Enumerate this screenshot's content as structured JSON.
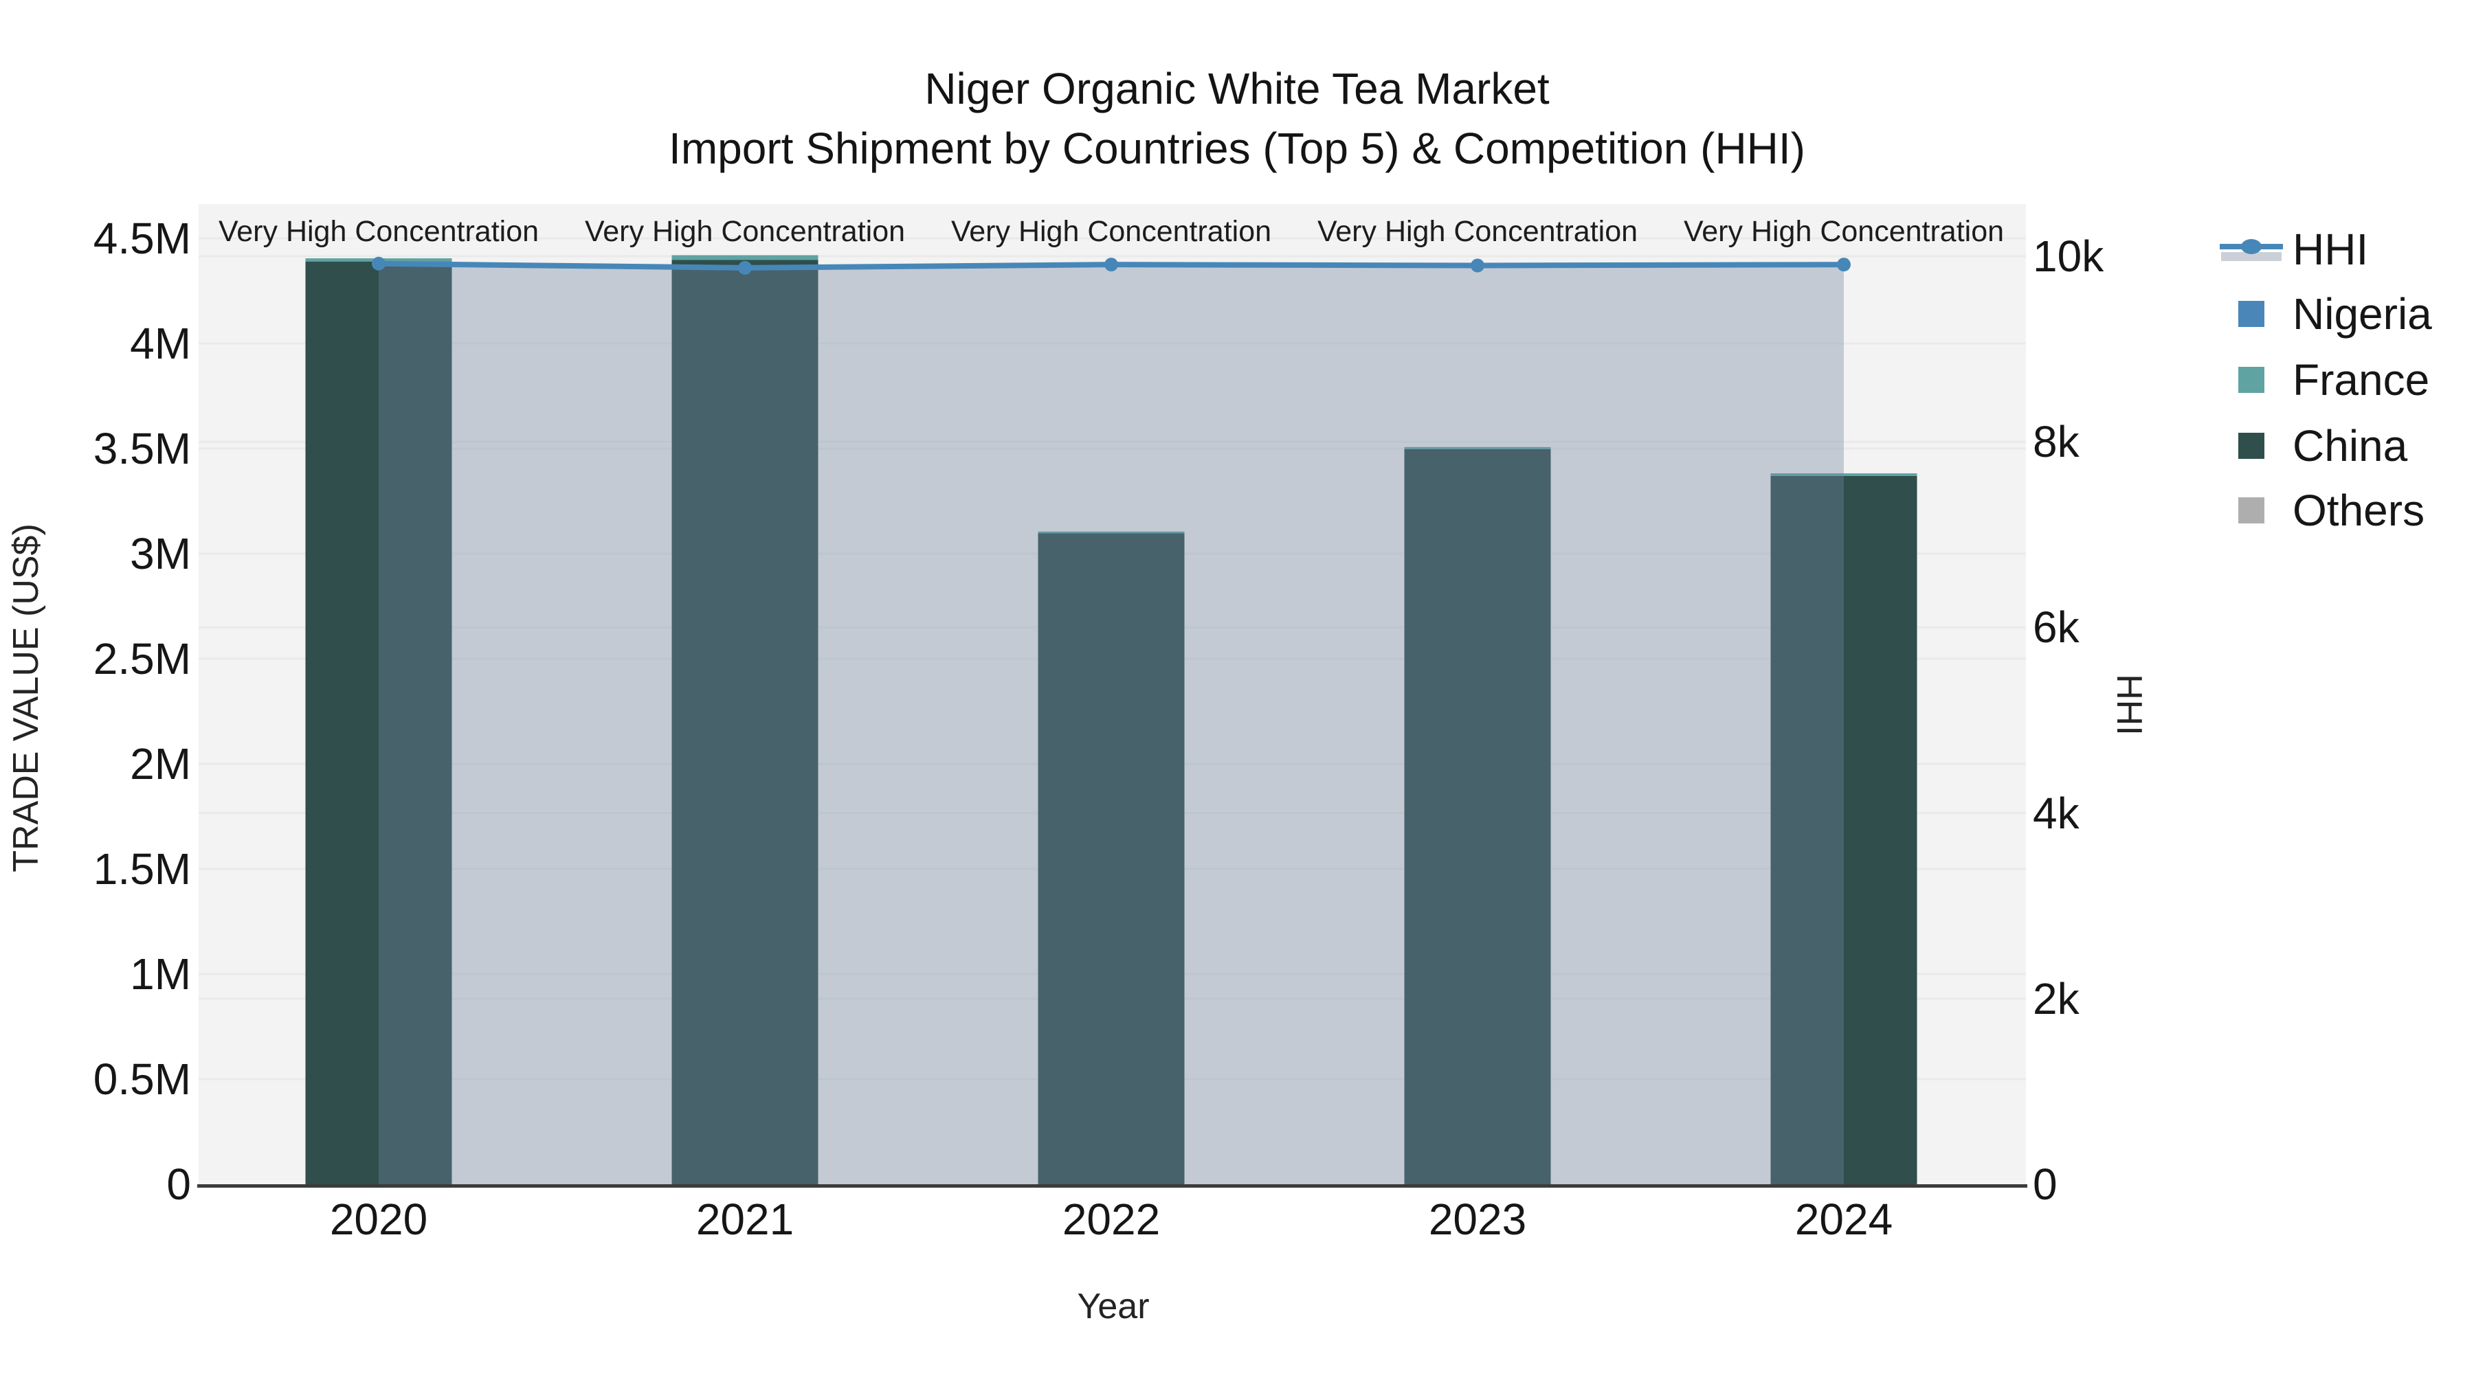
{
  "figure": {
    "title_line1": "Niger Organic White Tea Market",
    "title_line2": "Import Shipment by Countries (Top 5) & Competition (HHI)"
  },
  "axes": {
    "x": {
      "title": "Year"
    },
    "y_left": {
      "title": "TRADE VALUE (US$)",
      "range": [
        0,
        4500000
      ],
      "ticks": [
        {
          "v": 0,
          "label": "0"
        },
        {
          "v": 500000,
          "label": "0.5M"
        },
        {
          "v": 1000000,
          "label": "1M"
        },
        {
          "v": 1500000,
          "label": "1.5M"
        },
        {
          "v": 2000000,
          "label": "2M"
        },
        {
          "v": 2500000,
          "label": "2.5M"
        },
        {
          "v": 3000000,
          "label": "3M"
        },
        {
          "v": 3500000,
          "label": "3.5M"
        },
        {
          "v": 4000000,
          "label": "4M"
        },
        {
          "v": 4500000,
          "label": "4.5M"
        }
      ]
    },
    "y_right": {
      "title": "HHI",
      "range": [
        0,
        10000
      ],
      "ticks": [
        {
          "v": 0,
          "label": "0"
        },
        {
          "v": 2000,
          "label": "2k"
        },
        {
          "v": 4000,
          "label": "4k"
        },
        {
          "v": 6000,
          "label": "6k"
        },
        {
          "v": 8000,
          "label": "8k"
        },
        {
          "v": 10000,
          "label": "10k"
        }
      ]
    }
  },
  "annotations": {
    "text": "Very High Concentration"
  },
  "legend_order": [
    "HHI",
    "Nigeria",
    "France",
    "China",
    "Others"
  ],
  "style": {
    "plot_bg": "#F2F3F2",
    "grid_color": "rgba(40,40,40,0.045)",
    "axis_line_color": "#3C3C3C",
    "hhi_line_color": "#4787B8",
    "hhi_area_fill": "rgba(113,133,160,0.37)"
  },
  "chart_data": {
    "type": "combo-stacked-bar-line",
    "title": "Niger Organic White Tea Market — Import Shipment by Countries (Top 5) & Competition (HHI)",
    "xlabel": "Year",
    "ylabel_left": "TRADE VALUE (US$)",
    "ylabel_right": "HHI",
    "ylim_left": [
      0,
      4500000
    ],
    "ylim_right": [
      0,
      10000
    ],
    "legend_position": "right",
    "grid": true,
    "categories": [
      "2020",
      "2021",
      "2022",
      "2023",
      "2024"
    ],
    "stack_order": [
      "China",
      "France",
      "Nigeria",
      "Others"
    ],
    "annotation_per_year": "Very High Concentration",
    "series": [
      {
        "name": "HHI",
        "type": "line",
        "axis": "right",
        "color": "#4787B8",
        "marker": "circle",
        "area_fill": "rgba(113,133,160,0.37)",
        "values": [
          9920,
          9875,
          9910,
          9900,
          9910
        ]
      },
      {
        "name": "Nigeria",
        "type": "bar",
        "axis": "left",
        "color": "#4A86B8",
        "values": [
          0,
          0,
          0,
          0,
          0
        ]
      },
      {
        "name": "France",
        "type": "bar",
        "axis": "left",
        "color": "#5FA3A3",
        "values": [
          15000,
          22000,
          8000,
          10000,
          12000
        ]
      },
      {
        "name": "China",
        "type": "bar",
        "axis": "left",
        "color": "#2F4E4C",
        "values": [
          4390000,
          4398000,
          3097000,
          3497000,
          3370000
        ]
      },
      {
        "name": "Others",
        "type": "bar",
        "axis": "left",
        "color": "#AEAEAE",
        "values": [
          0,
          0,
          0,
          0,
          0
        ]
      }
    ],
    "bar_totals": [
      4405000,
      4420000,
      3105000,
      3507000,
      3382000
    ]
  }
}
